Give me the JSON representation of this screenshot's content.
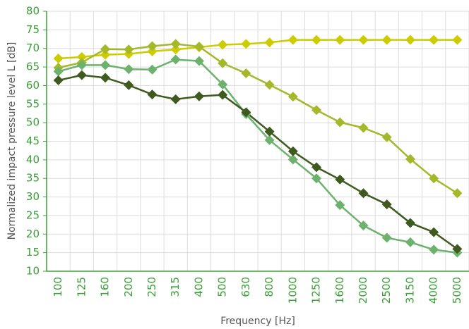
{
  "chart_data": {
    "type": "line",
    "x_label": "Frequency [Hz]",
    "y_label": "Normalized impact pressure level L [dB]",
    "categories": [
      "100",
      "125",
      "160",
      "200",
      "250",
      "315",
      "400",
      "500",
      "630",
      "800",
      "1000",
      "1250",
      "1600",
      "2000",
      "2500",
      "3150",
      "4000",
      "5000"
    ],
    "series": [
      {
        "color": "#cccc00",
        "values": [
          67.3,
          67.7,
          68.3,
          68.5,
          69.2,
          69.7,
          70.3,
          71,
          71.2,
          71.6,
          72.3,
          72.3,
          72.3,
          72.3,
          72.3,
          72.3,
          72.3,
          72.3
        ]
      },
      {
        "color": "#a5b82a",
        "values": [
          64.8,
          66.2,
          69.8,
          69.7,
          70.6,
          71.2,
          70.5,
          66,
          63.3,
          60.2,
          57,
          53.4,
          50.1,
          48.6,
          46.1,
          40.2,
          35,
          31
        ]
      },
      {
        "color": "#6cb26c",
        "values": [
          63.8,
          65.5,
          65.5,
          64.4,
          64.3,
          67,
          66.6,
          60.3,
          52.3,
          45.3,
          40.1,
          35,
          27.8,
          22.3,
          19,
          17.8,
          15.8,
          15
        ]
      },
      {
        "color": "#3e5a1f",
        "values": [
          61.4,
          62.8,
          62.1,
          60.1,
          57.6,
          56.3,
          57.1,
          57.5,
          52.8,
          47.6,
          42.3,
          38,
          34.7,
          31,
          28,
          23,
          20.5,
          16
        ]
      }
    ],
    "ylim": [
      10,
      80
    ],
    "yticks": [
      10,
      15,
      20,
      25,
      30,
      35,
      40,
      45,
      50,
      55,
      60,
      65,
      70,
      75,
      80
    ],
    "grid": true
  }
}
